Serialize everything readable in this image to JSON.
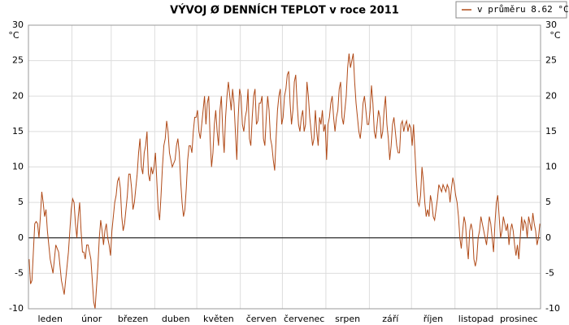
{
  "chart_data": {
    "type": "line",
    "title": "VÝVOJ Ø DENNÍCH TEPLOT v roce 2011",
    "legend": "v průměru 8.62 °C",
    "y_unit": "°C",
    "color": "#b04a18",
    "ylim": [
      -10,
      30
    ],
    "yticks": [
      -10,
      -5,
      0,
      5,
      10,
      15,
      20,
      25,
      30
    ],
    "grid": true,
    "categories": [
      "leden",
      "únor",
      "březen",
      "duben",
      "květen",
      "červen",
      "červenec",
      "srpen",
      "září",
      "říjen",
      "listopad",
      "prosinec"
    ],
    "values": [
      [
        -3,
        -6.5,
        -6,
        -2,
        2,
        2.3,
        2,
        0,
        3,
        6.5,
        5,
        3,
        4,
        1,
        -1,
        -3,
        -4,
        -5,
        -3,
        -1,
        -1.5,
        -2,
        -4,
        -6,
        -7,
        -8,
        -6,
        -4,
        -2,
        1,
        4
      ],
      [
        5.5,
        5,
        2,
        0,
        3,
        5,
        1,
        -2,
        -2,
        -3,
        -1,
        -1,
        -2,
        -3,
        -6,
        -9,
        -10,
        -7,
        -4,
        0,
        2.5,
        1,
        -1,
        1,
        2,
        0,
        -1,
        -2.5
      ],
      [
        1,
        3,
        5,
        6,
        8,
        8.5,
        7,
        3,
        1,
        2,
        4,
        6,
        9,
        9,
        7,
        4,
        5,
        7,
        9,
        12,
        14,
        10,
        9,
        12,
        13,
        15,
        9,
        8,
        10,
        9,
        10
      ],
      [
        12,
        8,
        4,
        2.5,
        6,
        10,
        13,
        14,
        16.5,
        15,
        12,
        11,
        10,
        10.5,
        11,
        13,
        14,
        12,
        8,
        5,
        3,
        4,
        7,
        11,
        13,
        13,
        12,
        15,
        17,
        17
      ],
      [
        18,
        15,
        14,
        16,
        18,
        20,
        16,
        19,
        20,
        14,
        10,
        12,
        16,
        18,
        15,
        13,
        18,
        20,
        15,
        12,
        17,
        20,
        22,
        20,
        18,
        21,
        19,
        15,
        11,
        17,
        21
      ],
      [
        20,
        16,
        15,
        17,
        18,
        21,
        14,
        13,
        17,
        20,
        21,
        16,
        16.5,
        19,
        19,
        20,
        14,
        13,
        17,
        20,
        18,
        14,
        13,
        11,
        9.5,
        14,
        18,
        20,
        21,
        16
      ],
      [
        17,
        20,
        21,
        23,
        23.5,
        19,
        16,
        18,
        22,
        23,
        19,
        16,
        15,
        17,
        18,
        15,
        16,
        22,
        20,
        17,
        15,
        13,
        14,
        18,
        15,
        13,
        17,
        16,
        18,
        15,
        16
      ],
      [
        11,
        16,
        17,
        19,
        20,
        17,
        15,
        17,
        18,
        21,
        22,
        17,
        16,
        18,
        20,
        24,
        26,
        24,
        25,
        26,
        22,
        19,
        17,
        15,
        14,
        16,
        19,
        20,
        18,
        16,
        16
      ],
      [
        18,
        21.5,
        19,
        15,
        14,
        16,
        18,
        17,
        14,
        15,
        18,
        20,
        16,
        14,
        11,
        13,
        16,
        17,
        15,
        13,
        12,
        12,
        16,
        16.5,
        15,
        16,
        16.5,
        15,
        16,
        15.5
      ],
      [
        13,
        16,
        12,
        8,
        5,
        4.5,
        6,
        10,
        8,
        5,
        3,
        4,
        3,
        6,
        5,
        3,
        2.5,
        4,
        5.5,
        7.5,
        7,
        6.5,
        7.5,
        7,
        6.5,
        7.5,
        7,
        5,
        7,
        8.5,
        7.5
      ],
      [
        6,
        5,
        3,
        0,
        -1.5,
        1,
        3,
        2,
        -1,
        -3,
        1,
        2,
        1,
        -3,
        -4,
        -3,
        0,
        1,
        3,
        2,
        1,
        0,
        -1,
        1,
        3,
        2,
        0,
        -2,
        2,
        5
      ],
      [
        6,
        3,
        0,
        1,
        3,
        2,
        1,
        2,
        -1,
        1,
        2,
        1,
        -1,
        -2.5,
        -1,
        -3,
        0,
        3,
        1,
        2.5,
        2,
        0,
        3,
        2,
        1,
        3.5,
        2,
        1,
        -1,
        0,
        2
      ]
    ]
  }
}
